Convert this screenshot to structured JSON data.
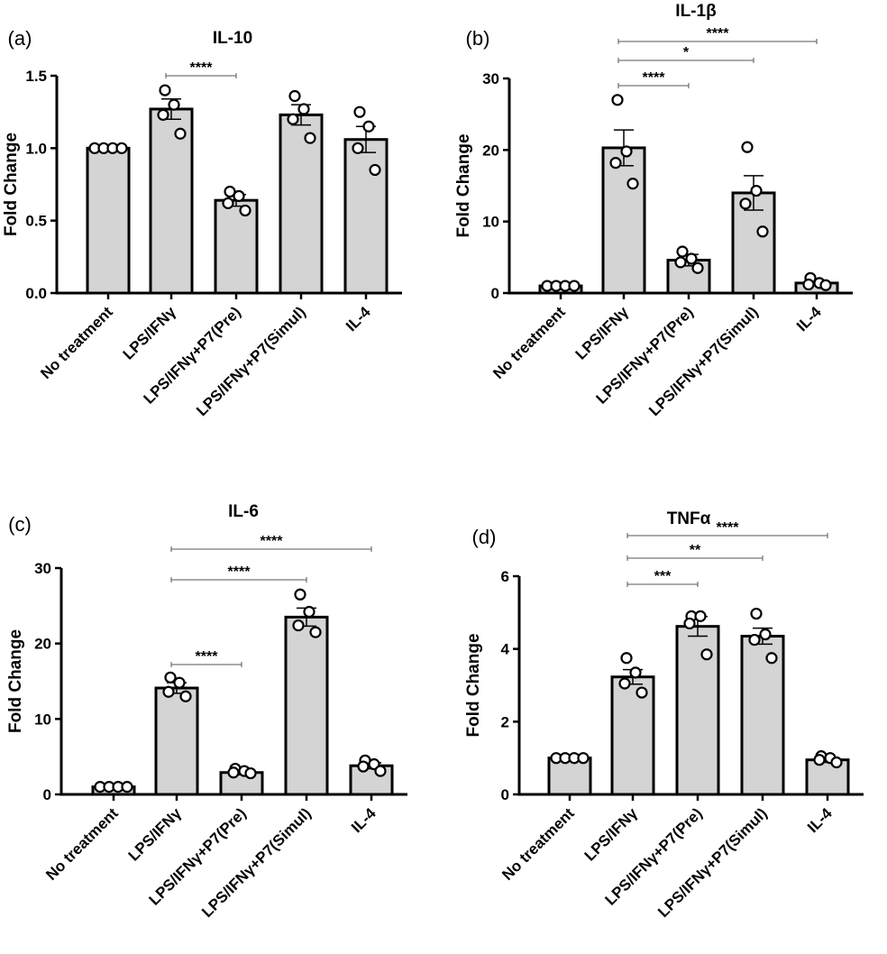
{
  "categories": [
    "No treatment",
    "LPS/IFNγ",
    "LPS/IFNγ+P7(Pre)",
    "LPS/IFNγ+P7(Simul)",
    "IL-4"
  ],
  "style": {
    "bar_fill": "#d4d4d4",
    "bar_stroke": "#000000",
    "point_fill": "#ffffff"
  },
  "chart_data": [
    {
      "panel": "(a)",
      "type": "bar",
      "title": "IL-10",
      "ylabel": "Fold Change",
      "ylim": [
        0,
        1.5
      ],
      "yticks": [
        "0.0",
        "0.5",
        "1.0",
        "1.5"
      ],
      "categories": [
        "No treatment",
        "LPS/IFNγ",
        "LPS/IFNγ+P7(Pre)",
        "LPS/IFNγ+P7(Simul)",
        "IL-4"
      ],
      "values": [
        1.0,
        1.27,
        0.64,
        1.23,
        1.06
      ],
      "errors": [
        0,
        0.07,
        0.04,
        0.07,
        0.09
      ],
      "points": [
        [
          1.0,
          1.0,
          1.0,
          1.0
        ],
        [
          1.4,
          1.3,
          1.23,
          1.1
        ],
        [
          0.7,
          0.67,
          0.62,
          0.57
        ],
        [
          1.36,
          1.27,
          1.2,
          1.07
        ],
        [
          1.25,
          1.15,
          1.0,
          0.85
        ]
      ],
      "significance": [
        {
          "from": 1,
          "to": 2,
          "label": "****"
        }
      ]
    },
    {
      "panel": "(b)",
      "type": "bar",
      "title": "IL-1β",
      "ylabel": "Fold Change",
      "ylim": [
        0,
        30
      ],
      "yticks": [
        "0",
        "10",
        "20",
        "30"
      ],
      "categories": [
        "No treatment",
        "LPS/IFNγ",
        "LPS/IFNγ+P7(Pre)",
        "LPS/IFNγ+P7(Simul)",
        "IL-4"
      ],
      "values": [
        1.0,
        20.3,
        4.6,
        14.0,
        1.4
      ],
      "errors": [
        0,
        2.5,
        0.8,
        2.4,
        0.3
      ],
      "points": [
        [
          1.0,
          1.0,
          1.0,
          1.0
        ],
        [
          27.0,
          19.8,
          18.2,
          15.3
        ],
        [
          5.8,
          4.8,
          4.3,
          3.5
        ],
        [
          20.4,
          14.3,
          12.5,
          8.6
        ],
        [
          2.1,
          1.4,
          1.2,
          1.1
        ]
      ],
      "significance": [
        {
          "from": 1,
          "to": 2,
          "label": "****"
        },
        {
          "from": 1,
          "to": 3,
          "label": "*"
        },
        {
          "from": 1,
          "to": 4,
          "label": "****"
        }
      ]
    },
    {
      "panel": "(c)",
      "type": "bar",
      "title": "IL-6",
      "ylabel": "Fold Change",
      "ylim": [
        0,
        30
      ],
      "yticks": [
        "0",
        "10",
        "20",
        "30"
      ],
      "categories": [
        "No treatment",
        "LPS/IFNγ",
        "LPS/IFNγ+P7(Pre)",
        "LPS/IFNγ+P7(Simul)",
        "IL-4"
      ],
      "values": [
        1.0,
        14.1,
        2.9,
        23.5,
        3.8
      ],
      "errors": [
        0,
        0.7,
        0.3,
        1.2,
        0.4
      ],
      "points": [
        [
          1.0,
          1.0,
          1.0,
          1.0
        ],
        [
          15.5,
          14.8,
          13.6,
          13.0
        ],
        [
          3.4,
          3.1,
          2.9,
          2.8
        ],
        [
          26.5,
          24.2,
          22.4,
          21.5
        ],
        [
          4.5,
          4.0,
          3.7,
          3.1
        ]
      ],
      "significance": [
        {
          "from": 1,
          "to": 2,
          "label": "****"
        },
        {
          "from": 1,
          "to": 3,
          "label": "****"
        },
        {
          "from": 1,
          "to": 4,
          "label": "****"
        }
      ]
    },
    {
      "panel": "(d)",
      "type": "bar",
      "title": "TNFα",
      "ylabel": "Fold Change",
      "ylim": [
        0,
        6
      ],
      "yticks": [
        "0",
        "2",
        "4",
        "6"
      ],
      "categories": [
        "No treatment",
        "LPS/IFNγ",
        "LPS/IFNγ+P7(Pre)",
        "LPS/IFNγ+P7(Simul)",
        "IL-4"
      ],
      "values": [
        1.0,
        3.23,
        4.62,
        4.35,
        0.95
      ],
      "errors": [
        0,
        0.2,
        0.27,
        0.22,
        0.07
      ],
      "points": [
        [
          1.0,
          1.0,
          1.0,
          1.0
        ],
        [
          3.75,
          3.35,
          3.05,
          2.8
        ],
        [
          4.9,
          4.9,
          4.7,
          3.85
        ],
        [
          4.97,
          4.4,
          4.25,
          3.75
        ],
        [
          1.05,
          1.0,
          0.95,
          0.88
        ]
      ],
      "significance": [
        {
          "from": 1,
          "to": 2,
          "label": "***"
        },
        {
          "from": 1,
          "to": 3,
          "label": "**"
        },
        {
          "from": 1,
          "to": 4,
          "label": "****"
        }
      ]
    }
  ]
}
